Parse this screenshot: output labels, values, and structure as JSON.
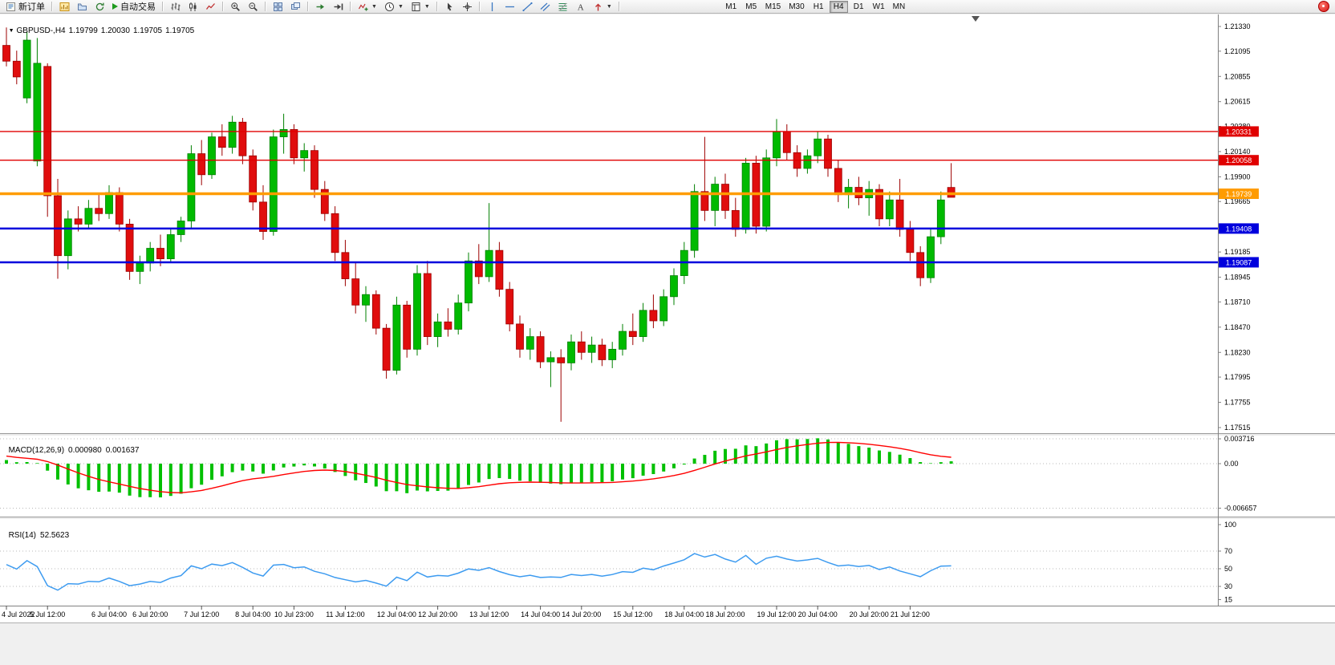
{
  "toolbar": {
    "new_order_label": "新订单",
    "auto_trading_label": "自动交易",
    "timeframes": [
      "M1",
      "M5",
      "M15",
      "M30",
      "H1",
      "H4",
      "D1",
      "W1",
      "MN"
    ],
    "active_timeframe": "H4"
  },
  "chart": {
    "symbol_period": "GBPUSD-,H4",
    "open": "1.19799",
    "high": "1.20030",
    "low": "1.19705",
    "close": "1.19705"
  },
  "indicators": {
    "macd": {
      "name": "MACD(12,26,9)",
      "value1": "0.000980",
      "value2": "0.001637"
    },
    "rsi": {
      "name": "RSI(14)",
      "value": "52.5623"
    }
  },
  "chart_data": {
    "type": "candlestick",
    "symbol": "GBPUSD-",
    "period": "H4",
    "title": "GBPUSD-,H4 1.19799 1.20030 1.19705 1.19705",
    "y_axis": {
      "labels": [
        "1.21330",
        "1.21095",
        "1.20855",
        "1.20615",
        "1.20380",
        "1.20140",
        "1.19900",
        "1.19665",
        "1.19425",
        "1.19185",
        "1.18945",
        "1.18710",
        "1.18470",
        "1.18230",
        "1.17995",
        "1.17755",
        "1.17515"
      ],
      "top": 1.2133,
      "bottom": 1.17515
    },
    "levels": [
      {
        "price": 1.20331,
        "label": "1.20331",
        "color": "#e00000",
        "width": 1.4
      },
      {
        "price": 1.20058,
        "label": "1.20058",
        "color": "#e00000",
        "width": 1.4
      },
      {
        "price": 1.19739,
        "label": "1.19739",
        "color": "#ff9c00",
        "width": 3.5
      },
      {
        "price": 1.19408,
        "label": "1.19408",
        "color": "#0000dd",
        "width": 2.5
      },
      {
        "price": 1.19087,
        "label": "1.19087",
        "color": "#0000dd",
        "width": 2.5
      }
    ],
    "time_axis": [
      {
        "i": 0,
        "label": "4 Jul 2022"
      },
      {
        "i": 4,
        "label": "5 Jul 12:00"
      },
      {
        "i": 10,
        "label": "6 Jul 04:00"
      },
      {
        "i": 14,
        "label": "6 Jul 20:00"
      },
      {
        "i": 19,
        "label": "7 Jul 12:00"
      },
      {
        "i": 24,
        "label": "8 Jul 04:00"
      },
      {
        "i": 28,
        "label": "10 Jul 23:00"
      },
      {
        "i": 33,
        "label": "11 Jul 12:00"
      },
      {
        "i": 38,
        "label": "12 Jul 04:00"
      },
      {
        "i": 42,
        "label": "12 Jul 20:00"
      },
      {
        "i": 47,
        "label": "13 Jul 12:00"
      },
      {
        "i": 52,
        "label": "14 Jul 04:00"
      },
      {
        "i": 56,
        "label": "14 Jul 20:00"
      },
      {
        "i": 61,
        "label": "15 Jul 12:00"
      },
      {
        "i": 66,
        "label": "18 Jul 04:00"
      },
      {
        "i": 70,
        "label": "18 Jul 20:00"
      },
      {
        "i": 75,
        "label": "19 Jul 12:00"
      },
      {
        "i": 79,
        "label": "20 Jul 04:00"
      },
      {
        "i": 84,
        "label": "20 Jul 20:00"
      },
      {
        "i": 88,
        "label": "21 Jul 12:00"
      }
    ],
    "candles": [
      [
        1.2115,
        1.2132,
        1.2095,
        1.21
      ],
      [
        1.21,
        1.211,
        1.2078,
        1.2085
      ],
      [
        1.2065,
        1.2128,
        1.206,
        1.212
      ],
      [
        1.2005,
        1.2122,
        1.2,
        1.2098
      ],
      [
        1.2095,
        1.2098,
        1.1952,
        1.1972
      ],
      [
        1.1972,
        1.1988,
        1.1893,
        1.1915
      ],
      [
        1.1915,
        1.1958,
        1.1902,
        1.195
      ],
      [
        1.195,
        1.1962,
        1.1938,
        1.1945
      ],
      [
        1.1945,
        1.1968,
        1.194,
        1.196
      ],
      [
        1.196,
        1.1975,
        1.1948,
        1.1955
      ],
      [
        1.1955,
        1.1982,
        1.195,
        1.1975
      ],
      [
        1.1975,
        1.198,
        1.1938,
        1.1945
      ],
      [
        1.1945,
        1.195,
        1.1892,
        1.19
      ],
      [
        1.19,
        1.1915,
        1.1888,
        1.1908
      ],
      [
        1.1908,
        1.1928,
        1.19,
        1.1922
      ],
      [
        1.1922,
        1.1935,
        1.1905,
        1.1912
      ],
      [
        1.1912,
        1.194,
        1.1908,
        1.1935
      ],
      [
        1.1935,
        1.1952,
        1.1928,
        1.1948
      ],
      [
        1.1948,
        1.202,
        1.194,
        1.2012
      ],
      [
        1.2012,
        1.2025,
        1.1982,
        1.1992
      ],
      [
        1.1992,
        1.2032,
        1.1988,
        1.2028
      ],
      [
        1.2028,
        1.204,
        1.201,
        1.2018
      ],
      [
        1.2018,
        1.2048,
        1.2012,
        1.2042
      ],
      [
        1.2042,
        1.2046,
        1.2002,
        1.201
      ],
      [
        1.201,
        1.2016,
        1.1958,
        1.1966
      ],
      [
        1.1966,
        1.1982,
        1.193,
        1.1938
      ],
      [
        1.1938,
        1.2035,
        1.1934,
        1.2028
      ],
      [
        1.2028,
        1.205,
        1.2012,
        1.2035
      ],
      [
        1.2035,
        1.204,
        1.2002,
        1.2008
      ],
      [
        1.2008,
        1.2022,
        1.1995,
        1.2015
      ],
      [
        1.2015,
        1.202,
        1.197,
        1.1978
      ],
      [
        1.1978,
        1.1986,
        1.1948,
        1.1955
      ],
      [
        1.1955,
        1.1962,
        1.191,
        1.1918
      ],
      [
        1.1918,
        1.193,
        1.1886,
        1.1893
      ],
      [
        1.1893,
        1.1908,
        1.186,
        1.1868
      ],
      [
        1.1868,
        1.1886,
        1.1852,
        1.1878
      ],
      [
        1.1878,
        1.1882,
        1.184,
        1.1846
      ],
      [
        1.1846,
        1.185,
        1.1798,
        1.1806
      ],
      [
        1.1806,
        1.1876,
        1.1802,
        1.1868
      ],
      [
        1.1868,
        1.1872,
        1.1818,
        1.1826
      ],
      [
        1.1826,
        1.1906,
        1.182,
        1.1898
      ],
      [
        1.1898,
        1.191,
        1.183,
        1.1838
      ],
      [
        1.1838,
        1.186,
        1.1828,
        1.1852
      ],
      [
        1.1852,
        1.1865,
        1.1838,
        1.1845
      ],
      [
        1.1845,
        1.1878,
        1.184,
        1.187
      ],
      [
        1.187,
        1.1918,
        1.1862,
        1.191
      ],
      [
        1.191,
        1.1926,
        1.1888,
        1.1895
      ],
      [
        1.1895,
        1.1965,
        1.189,
        1.192
      ],
      [
        1.192,
        1.1928,
        1.1876,
        1.1883
      ],
      [
        1.1883,
        1.189,
        1.1843,
        1.185
      ],
      [
        1.185,
        1.1858,
        1.1818,
        1.1826
      ],
      [
        1.1826,
        1.1846,
        1.1816,
        1.1838
      ],
      [
        1.1838,
        1.1843,
        1.1808,
        1.1814
      ],
      [
        1.1814,
        1.1824,
        1.179,
        1.1818
      ],
      [
        1.1818,
        1.1826,
        1.1757,
        1.1813
      ],
      [
        1.1813,
        1.184,
        1.1806,
        1.1833
      ],
      [
        1.1833,
        1.1843,
        1.1816,
        1.1823
      ],
      [
        1.1823,
        1.1838,
        1.1813,
        1.183
      ],
      [
        1.183,
        1.1836,
        1.181,
        1.1816
      ],
      [
        1.1816,
        1.1833,
        1.1808,
        1.1826
      ],
      [
        1.1826,
        1.185,
        1.182,
        1.1843
      ],
      [
        1.1843,
        1.186,
        1.183,
        1.1838
      ],
      [
        1.1838,
        1.187,
        1.1833,
        1.1863
      ],
      [
        1.1863,
        1.1878,
        1.1846,
        1.1853
      ],
      [
        1.1853,
        1.1883,
        1.1848,
        1.1876
      ],
      [
        1.1876,
        1.1903,
        1.1868,
        1.1896
      ],
      [
        1.1896,
        1.1928,
        1.1888,
        1.192
      ],
      [
        1.192,
        1.1983,
        1.1913,
        1.1976
      ],
      [
        1.1976,
        1.2028,
        1.1948,
        1.1958
      ],
      [
        1.1958,
        1.199,
        1.1943,
        1.1983
      ],
      [
        1.1983,
        1.1993,
        1.195,
        1.1958
      ],
      [
        1.1958,
        1.197,
        1.1933,
        1.194
      ],
      [
        1.194,
        1.2008,
        1.1936,
        1.2003
      ],
      [
        1.2003,
        1.201,
        1.1936,
        1.1943
      ],
      [
        1.1943,
        1.2016,
        1.1938,
        1.2008
      ],
      [
        1.2008,
        1.2045,
        1.2,
        1.2033
      ],
      [
        1.2033,
        1.204,
        1.2006,
        1.2013
      ],
      [
        1.2013,
        1.202,
        1.199,
        1.1998
      ],
      [
        1.1998,
        1.2016,
        1.1993,
        1.201
      ],
      [
        1.201,
        1.2033,
        1.2003,
        1.2026
      ],
      [
        1.2026,
        1.203,
        1.199,
        1.1998
      ],
      [
        1.1998,
        1.2006,
        1.1966,
        1.1973
      ],
      [
        1.1973,
        1.1988,
        1.196,
        1.198
      ],
      [
        1.198,
        1.199,
        1.1963,
        1.197
      ],
      [
        1.197,
        1.1986,
        1.1953,
        1.1978
      ],
      [
        1.1978,
        1.1983,
        1.1943,
        1.195
      ],
      [
        1.195,
        1.1976,
        1.1943,
        1.1968
      ],
      [
        1.1968,
        1.1988,
        1.1933,
        1.194
      ],
      [
        1.194,
        1.1948,
        1.191,
        1.1918
      ],
      [
        1.1918,
        1.1924,
        1.1886,
        1.1894
      ],
      [
        1.1894,
        1.194,
        1.1889,
        1.1933
      ],
      [
        1.1933,
        1.1976,
        1.1926,
        1.1968
      ],
      [
        1.19799,
        1.2003,
        1.19705,
        1.19705
      ]
    ],
    "macd": {
      "label": "MACD(12,26,9)",
      "value_main": "0.000980",
      "value_signal": "0.001637",
      "axis_labels": [
        {
          "value": 0.003716,
          "label": "0.003716"
        },
        {
          "value": 0,
          "label": "0.00"
        },
        {
          "value": -0.006657,
          "label": "-0.006657"
        }
      ]
    },
    "rsi": {
      "label": "RSI(14)",
      "value": "52.5623",
      "axis_labels": [
        100,
        70,
        50,
        30,
        15
      ],
      "level_lines": [
        70,
        50,
        30
      ]
    },
    "colors": {
      "bull": "#00ba00",
      "bull_edge": "#008000",
      "bear": "#e00d0d",
      "bear_edge": "#9c0000",
      "macd_histogram": "#00c000",
      "macd_signal": "#ff0000",
      "rsi_line": "#3d9bf0",
      "background": "#ffffff",
      "axis_text": "#000000"
    }
  }
}
